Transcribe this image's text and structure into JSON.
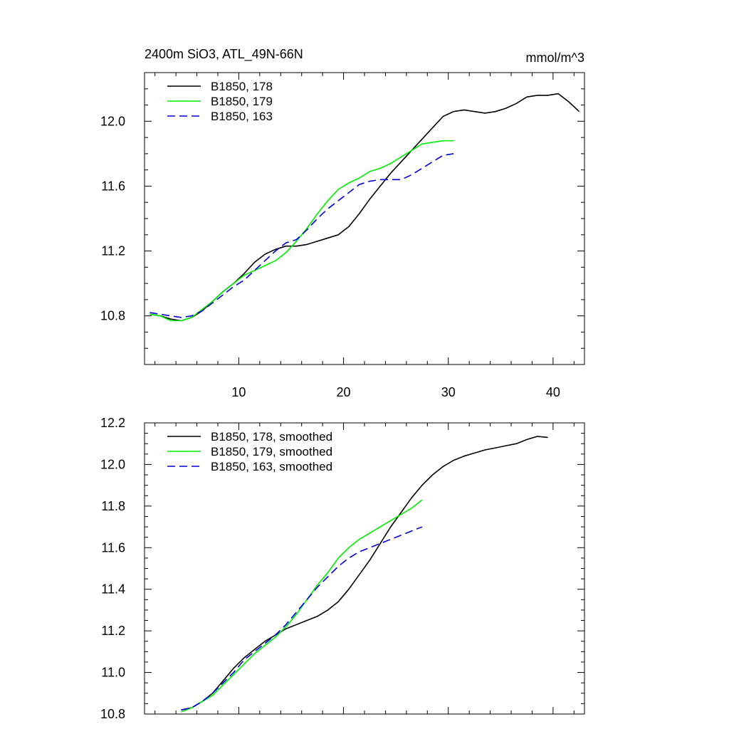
{
  "chart_data": [
    {
      "type": "line",
      "title": "2400m SiO3, ATL_49N-66N",
      "units": "mmol/m^3",
      "xlim": [
        1,
        43
      ],
      "ylim": [
        10.5,
        12.3
      ],
      "xticks": [
        10,
        20,
        30,
        40
      ],
      "xtick_labels": [
        "10",
        "20",
        "30",
        "40"
      ],
      "yticks": [
        10.8,
        11.2,
        11.6,
        12.0
      ],
      "ytick_labels": [
        "10.8",
        "11.2",
        "11.6",
        "12.0"
      ],
      "legend_position": "top-left",
      "series": [
        {
          "name": "B1850, 178",
          "color": "#000000",
          "dash": "solid",
          "x": [
            1.5,
            2.5,
            3.5,
            4.5,
            5.5,
            6.5,
            7.5,
            8.5,
            9.5,
            10.5,
            11.5,
            12.5,
            13.5,
            14.5,
            15.5,
            16.5,
            17.5,
            18.5,
            19.5,
            20.5,
            21.5,
            22.5,
            23.5,
            24.5,
            25.5,
            26.5,
            27.5,
            28.5,
            29.5,
            30.5,
            31.5,
            32.5,
            33.5,
            34.5,
            35.5,
            36.5,
            37.5,
            38.5,
            39.5,
            40.5,
            41.5,
            42.5
          ],
          "y": [
            10.81,
            10.8,
            10.78,
            10.77,
            10.79,
            10.83,
            10.89,
            10.95,
            11.0,
            11.06,
            11.13,
            11.18,
            11.21,
            11.23,
            11.23,
            11.24,
            11.26,
            11.28,
            11.3,
            11.35,
            11.43,
            11.52,
            11.6,
            11.68,
            11.75,
            11.82,
            11.89,
            11.96,
            12.03,
            12.06,
            12.07,
            12.06,
            12.05,
            12.06,
            12.08,
            12.11,
            12.15,
            12.16,
            12.16,
            12.17,
            12.12,
            12.06
          ]
        },
        {
          "name": "B1850, 179",
          "color": "#00ee00",
          "dash": "solid",
          "x": [
            1.5,
            2.5,
            3.5,
            4.5,
            5.5,
            6.5,
            7.5,
            8.5,
            9.5,
            10.5,
            11.5,
            12.5,
            13.5,
            14.5,
            15.5,
            16.5,
            17.5,
            18.5,
            19.5,
            20.5,
            21.5,
            22.5,
            23.5,
            24.5,
            25.5,
            26.5,
            27.5,
            28.5,
            29.5,
            30.5
          ],
          "y": [
            10.81,
            10.8,
            10.77,
            10.77,
            10.79,
            10.84,
            10.89,
            10.95,
            11.0,
            11.05,
            11.08,
            11.11,
            11.14,
            11.19,
            11.26,
            11.34,
            11.43,
            11.51,
            11.58,
            11.62,
            11.65,
            11.69,
            11.71,
            11.74,
            11.78,
            11.82,
            11.86,
            11.87,
            11.88,
            11.88
          ]
        },
        {
          "name": "B1850, 163",
          "color": "#0000dd",
          "dash": "dashed",
          "x": [
            1.5,
            2.5,
            3.5,
            4.5,
            5.5,
            6.5,
            7.5,
            8.5,
            9.5,
            10.5,
            11.5,
            12.5,
            13.5,
            14.5,
            15.5,
            16.5,
            17.5,
            18.5,
            19.5,
            20.5,
            21.5,
            22.5,
            23.5,
            24.5,
            25.5,
            26.5,
            27.5,
            28.5,
            29.5,
            30.5
          ],
          "y": [
            10.82,
            10.81,
            10.8,
            10.79,
            10.8,
            10.83,
            10.88,
            10.93,
            10.98,
            11.02,
            11.08,
            11.14,
            11.2,
            11.25,
            11.27,
            11.33,
            11.4,
            11.46,
            11.51,
            11.56,
            11.61,
            11.63,
            11.64,
            11.64,
            11.64,
            11.67,
            11.71,
            11.75,
            11.79,
            11.8
          ]
        }
      ]
    },
    {
      "type": "line",
      "title": "",
      "xlim": [
        1,
        43
      ],
      "ylim": [
        10.8,
        12.2
      ],
      "xticks": [
        10,
        20,
        30,
        40
      ],
      "yticks": [
        10.8,
        11.0,
        11.2,
        11.4,
        11.6,
        11.8,
        12.0,
        12.2
      ],
      "ytick_labels": [
        "10.8",
        "11.0",
        "11.2",
        "11.4",
        "11.6",
        "11.8",
        "12.0",
        "12.2"
      ],
      "legend_position": "top-left",
      "series": [
        {
          "name": "B1850, 178, smoothed",
          "color": "#000000",
          "dash": "solid",
          "x": [
            4.5,
            5.5,
            6.5,
            7.5,
            8.5,
            9.5,
            10.5,
            11.5,
            12.5,
            13.5,
            14.5,
            15.5,
            16.5,
            17.5,
            18.5,
            19.5,
            20.5,
            21.5,
            22.5,
            23.5,
            24.5,
            25.5,
            26.5,
            27.5,
            28.5,
            29.5,
            30.5,
            31.5,
            32.5,
            33.5,
            34.5,
            35.5,
            36.5,
            37.5,
            38.5,
            39.5
          ],
          "y": [
            10.82,
            10.83,
            10.86,
            10.9,
            10.96,
            11.02,
            11.07,
            11.11,
            11.15,
            11.18,
            11.21,
            11.23,
            11.25,
            11.27,
            11.3,
            11.34,
            11.4,
            11.47,
            11.54,
            11.62,
            11.7,
            11.77,
            11.84,
            11.9,
            11.95,
            11.99,
            12.02,
            12.04,
            12.055,
            12.07,
            12.08,
            12.09,
            12.1,
            12.12,
            12.135,
            12.13
          ]
        },
        {
          "name": "B1850, 179, smoothed",
          "color": "#00ee00",
          "dash": "solid",
          "x": [
            4.5,
            5.5,
            6.5,
            7.5,
            8.5,
            9.5,
            10.5,
            11.5,
            12.5,
            13.5,
            14.5,
            15.5,
            16.5,
            17.5,
            18.5,
            19.5,
            20.5,
            21.5,
            22.5,
            23.5,
            24.5,
            25.5,
            26.5,
            27.5
          ],
          "y": [
            10.81,
            10.83,
            10.86,
            10.89,
            10.94,
            10.99,
            11.04,
            11.09,
            11.13,
            11.17,
            11.22,
            11.28,
            11.35,
            11.42,
            11.48,
            11.55,
            11.6,
            11.64,
            11.67,
            11.7,
            11.73,
            11.76,
            11.79,
            11.83
          ]
        },
        {
          "name": "B1850, 163, smoothed",
          "color": "#0000dd",
          "dash": "dashed",
          "x": [
            4.5,
            5.5,
            6.5,
            7.5,
            8.5,
            9.5,
            10.5,
            11.5,
            12.5,
            13.5,
            14.5,
            15.5,
            16.5,
            17.5,
            18.5,
            19.5,
            20.5,
            21.5,
            22.5,
            23.5,
            24.5,
            25.5,
            26.5,
            27.5
          ],
          "y": [
            10.82,
            10.83,
            10.86,
            10.9,
            10.95,
            11.0,
            11.06,
            11.1,
            11.14,
            11.18,
            11.23,
            11.29,
            11.35,
            11.41,
            11.46,
            11.51,
            11.55,
            11.58,
            11.6,
            11.62,
            11.64,
            11.66,
            11.68,
            11.7
          ]
        }
      ]
    }
  ]
}
